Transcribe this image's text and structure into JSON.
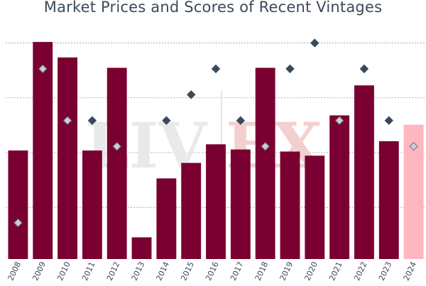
{
  "chart_data": {
    "type": "bar",
    "title": "Market Prices and Scores of Recent Vintages",
    "xlabel": "",
    "ylabel": "",
    "categories": [
      "2008",
      "2009",
      "2010",
      "2011",
      "2012",
      "2013",
      "2014",
      "2015",
      "2016",
      "2017",
      "2018",
      "2019",
      "2020",
      "2021",
      "2022",
      "2023",
      "2024"
    ],
    "series": [
      {
        "kind": "bar",
        "values": [
          95,
          200,
          185,
          95,
          175,
          11,
          68,
          83,
          101,
          96,
          175,
          94,
          90,
          129,
          158,
          104,
          120
        ],
        "colors": [
          "#7a0031",
          "#7a0031",
          "#7a0031",
          "#7a0031",
          "#7a0031",
          "#7a0031",
          "#7a0031",
          "#7a0031",
          "#7a0031",
          "#7a0031",
          "#7a0031",
          "#7a0031",
          "#7a0031",
          "#7a0031",
          "#7a0031",
          "#7a0031",
          "#ffb6c1"
        ]
      },
      {
        "kind": "scatter",
        "marker": "diamond",
        "values": [
          25,
          174,
          124,
          124,
          99,
          null,
          124,
          149,
          174,
          124,
          99,
          174,
          199,
          124,
          174,
          124,
          99
        ],
        "open_for_categories": [
          "2008",
          "2009",
          "2010",
          "2012",
          "2018",
          "2021",
          "2024"
        ],
        "color": "#3b4a5a"
      }
    ],
    "ylim": [
      -10,
      220
    ],
    "gridlines_y": [
      40,
      93,
      146,
      199
    ],
    "grid": true,
    "legend": "none",
    "watermark": "LIV-EX"
  }
}
